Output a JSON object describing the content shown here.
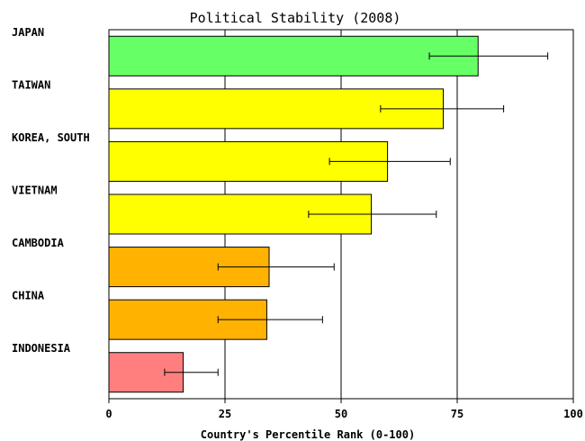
{
  "chart_data": {
    "type": "bar",
    "orientation": "horizontal",
    "title": "Political Stability (2008)",
    "xlabel": "Country's Percentile Rank (0-100)",
    "ylabel": "",
    "xlim": [
      0,
      100
    ],
    "x_ticks": [
      0,
      25,
      50,
      75,
      100
    ],
    "grid": "vertical",
    "legend": "none",
    "error_bars": true,
    "categories": [
      "JAPAN",
      "TAIWAN",
      "KOREA, SOUTH",
      "VIETNAM",
      "CAMBODIA",
      "CHINA",
      "INDONESIA"
    ],
    "values": [
      79.5,
      72.0,
      60.0,
      56.5,
      34.5,
      34.0,
      16.0
    ],
    "error_low": [
      69.0,
      58.5,
      47.5,
      43.0,
      23.5,
      23.5,
      12.0
    ],
    "error_high": [
      94.5,
      85.0,
      73.5,
      70.5,
      48.5,
      46.0,
      23.5
    ],
    "colors": [
      "#66ff66",
      "#ffff00",
      "#ffff00",
      "#ffff00",
      "#ffb300",
      "#ffb300",
      "#ff7f7f"
    ]
  }
}
